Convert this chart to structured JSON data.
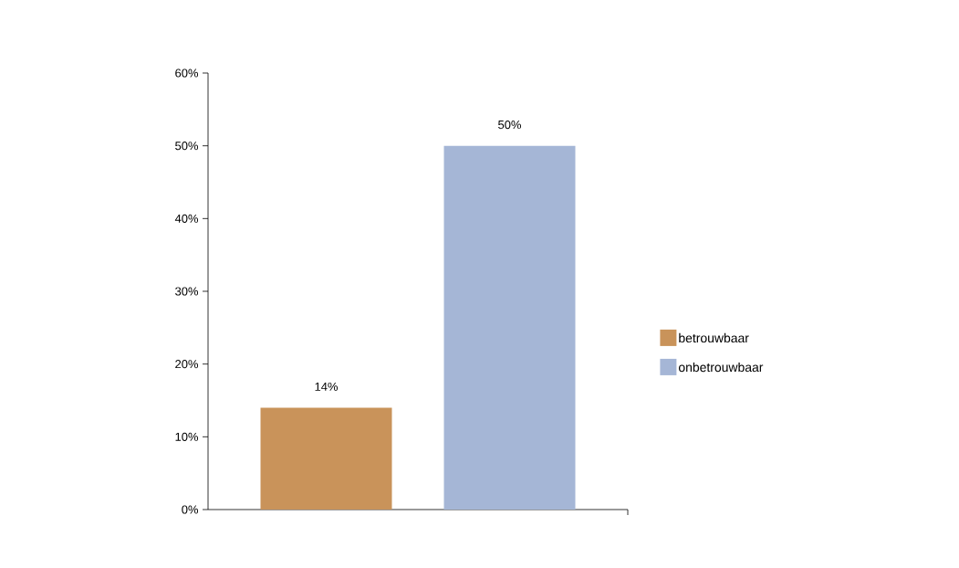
{
  "chart_data": {
    "type": "bar",
    "categories": [
      null
    ],
    "series": [
      {
        "name": "betrouwbaar",
        "color": "#c9935a",
        "values": [
          14
        ],
        "value_labels": [
          "14%"
        ]
      },
      {
        "name": "onbetrouwbaar",
        "color": "#a5b6d6",
        "values": [
          50
        ],
        "value_labels": [
          "50%"
        ]
      }
    ],
    "ylim": [
      0,
      60
    ],
    "yticks": [
      {
        "value": 0,
        "label": "0%"
      },
      {
        "value": 10,
        "label": "10%"
      },
      {
        "value": 20,
        "label": "20%"
      },
      {
        "value": 30,
        "label": "30%"
      },
      {
        "value": 40,
        "label": "40%"
      },
      {
        "value": 50,
        "label": "50%"
      },
      {
        "value": 60,
        "label": "60%"
      }
    ],
    "grid": false,
    "legend": "right"
  }
}
